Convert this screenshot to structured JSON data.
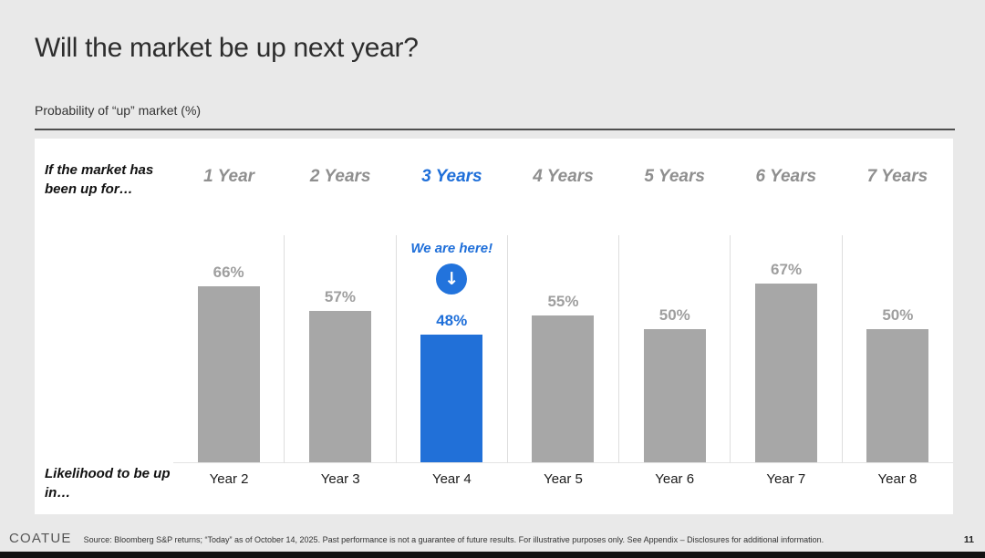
{
  "slide": {
    "title": "Will the market be up next year?",
    "subtitle": "Probability of “up” market (%)",
    "page_number": "11"
  },
  "chart": {
    "row_header_top": "If the market has been up for…",
    "row_header_bottom": "Likelihood to be up in…",
    "annotation_text": "We are here!",
    "annotation_icon": "down-arrow-circle-icon",
    "colors": {
      "bar": "#a7a7a7",
      "bar_label": "#9f9f9f",
      "highlight": "#2170d8",
      "highlight_text": "#1f6fd9",
      "header_gray": "#8f8f8f"
    }
  },
  "chart_data": {
    "type": "bar",
    "title": "Probability of “up” market (%)",
    "categories": [
      "1 Year",
      "2 Years",
      "3 Years",
      "4 Years",
      "5 Years",
      "6 Years",
      "7 Years"
    ],
    "x_axis_labels": [
      "Year 2",
      "Year 3",
      "Year 4",
      "Year 5",
      "Year 6",
      "Year 7",
      "Year 8"
    ],
    "values": [
      66,
      57,
      48,
      55,
      50,
      67,
      50
    ],
    "value_labels": [
      "66%",
      "57%",
      "48%",
      "55%",
      "50%",
      "67%",
      "50%"
    ],
    "highlight_index": 2,
    "ylim": [
      0,
      100
    ],
    "grid": false,
    "legend": "none",
    "annotation": {
      "text": "We are here!",
      "target_category": "3 Years",
      "target_value": 48
    }
  },
  "footer": {
    "logo": "COATUE",
    "source": "Source: Bloomberg S&P returns; “Today” as of October 14, 2025. Past performance is not a guarantee of future results.  For illustrative purposes only. See Appendix – Disclosures for additional information."
  }
}
